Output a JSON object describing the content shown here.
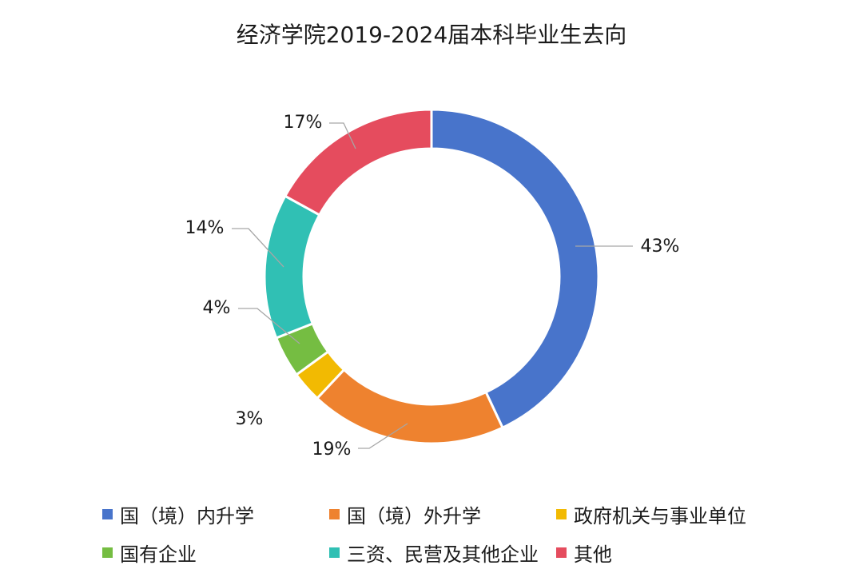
{
  "chart_data": {
    "type": "pie",
    "subtype": "donut",
    "title": "经济学院2019-2024届本科毕业生去向",
    "categories": [
      "国（境）内升学",
      "国（境）外升学",
      "政府机关与事业单位",
      "国有企业",
      "三资、民营及其他企业",
      "其他"
    ],
    "values": [
      43,
      19,
      3,
      4,
      14,
      17
    ],
    "value_labels": [
      "43%",
      "19%",
      "3%",
      "4%",
      "14%",
      "17%"
    ],
    "colors": [
      "#4874CB",
      "#EE822F",
      "#F2BA02",
      "#75BD42",
      "#30C0B4",
      "#E54C5E"
    ],
    "unit": "%",
    "legend_position": "bottom"
  }
}
